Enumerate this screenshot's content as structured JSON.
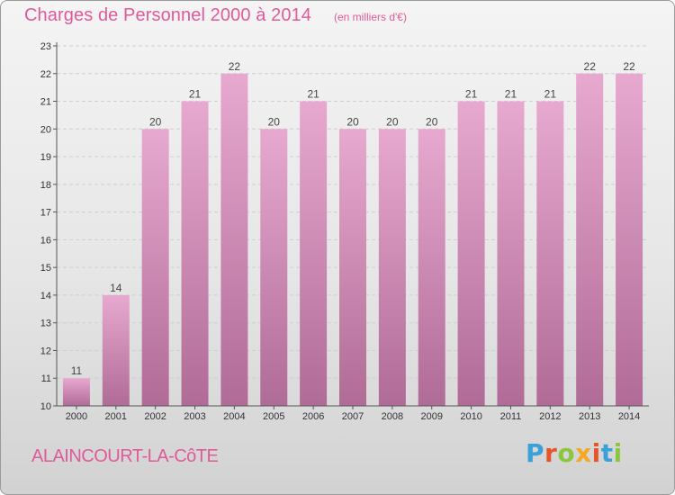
{
  "title": "Charges de Personnel 2000 à 2014",
  "unit_label": "(en milliers d'€)",
  "commune": "ALAINCOURT-LA-CôTE",
  "logo": {
    "text": "Proxiti",
    "letter_colors": [
      "#3aa0d8",
      "#e8542a",
      "#8cc63f",
      "#f7a823",
      "#e8542a",
      "#3aa0d8",
      "#8cc63f"
    ]
  },
  "colors": {
    "bar_top": "#e7a9cf",
    "bar_bottom": "#b06b97",
    "grid": "#cfcfcf",
    "axis": "#555555",
    "title": "#e05a9a"
  },
  "chart_data": {
    "type": "bar",
    "categories": [
      "2000",
      "2001",
      "2002",
      "2003",
      "2004",
      "2005",
      "2006",
      "2007",
      "2008",
      "2009",
      "2010",
      "2011",
      "2012",
      "2013",
      "2014"
    ],
    "values": [
      11,
      14,
      20,
      21,
      22,
      20,
      21,
      20,
      20,
      20,
      21,
      21,
      21,
      22,
      22
    ],
    "ylim": [
      10,
      23
    ],
    "yticks": [
      10,
      11,
      12,
      13,
      14,
      15,
      16,
      17,
      18,
      19,
      20,
      21,
      22,
      23
    ],
    "grid": true,
    "title": "Charges de Personnel 2000 à 2014",
    "xlabel": "",
    "ylabel": ""
  }
}
